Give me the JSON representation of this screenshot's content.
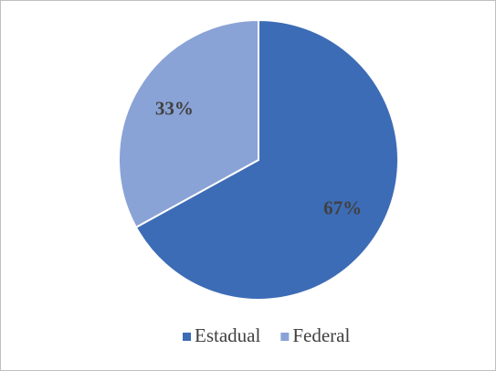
{
  "chart_data": {
    "type": "pie",
    "categories": [
      "Estadual",
      "Federal"
    ],
    "values": [
      67,
      33
    ],
    "value_labels": [
      "67%",
      "33%"
    ],
    "colors": [
      "#3d6cb6",
      "#8aa3d6"
    ],
    "start_angle": 0,
    "direction": "clockwise",
    "legend": "bottom"
  }
}
